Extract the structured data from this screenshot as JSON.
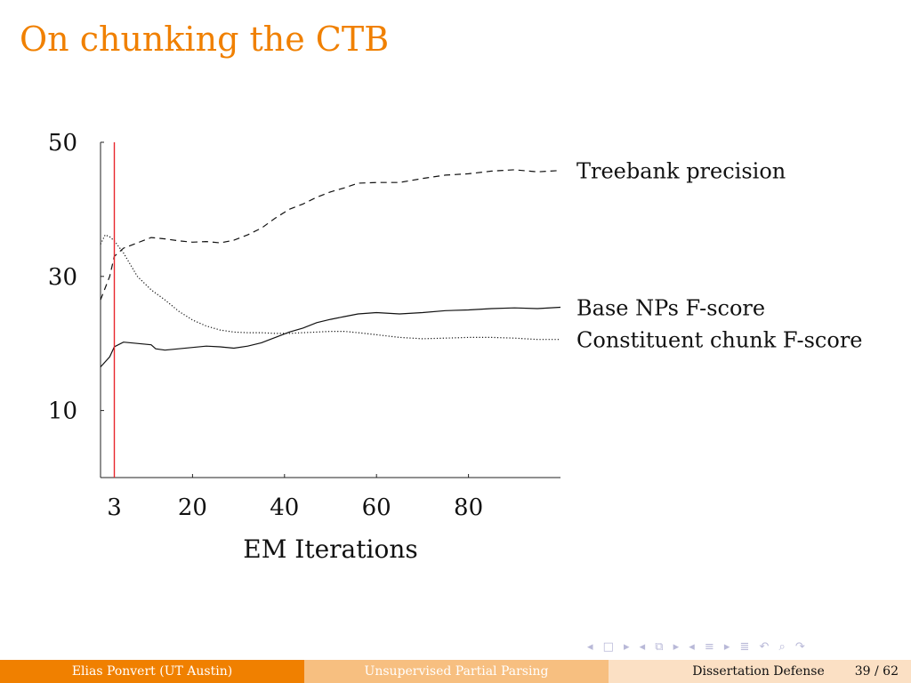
{
  "slide": {
    "title": "On chunking the CTB"
  },
  "footer": {
    "author": "Elias Ponvert  (UT Austin)",
    "talk": "Unsupervised Partial Parsing",
    "event": "Dissertation Defense",
    "page": "39 / 62"
  },
  "nav_icons": [
    "nav-prev-frame-icon",
    "nav-frame-icon",
    "nav-next-frame-icon",
    "nav-prev-subsection-icon",
    "nav-subsection-icon",
    "nav-next-subsection-icon",
    "nav-prev-section-icon",
    "nav-section-icon",
    "nav-next-section-icon",
    "nav-align-icon",
    "nav-back-icon",
    "nav-search-icon",
    "nav-forward-icon"
  ],
  "colors": {
    "accent": "#f08000",
    "marker": "#e8262d"
  },
  "chart_data": {
    "type": "line",
    "title": "",
    "xlabel": "EM Iterations",
    "ylabel": "",
    "xlim": [
      0,
      100
    ],
    "ylim": [
      0,
      50
    ],
    "x_ticks": [
      3,
      20,
      40,
      60,
      80
    ],
    "y_ticks": [
      10,
      30,
      50
    ],
    "marker_x": 3,
    "grid": false,
    "series": [
      {
        "name": "Treebank precision",
        "style": "dashed",
        "x": [
          0,
          2,
          3,
          5,
          8,
          11,
          14,
          17,
          20,
          23,
          26,
          29,
          32,
          35,
          38,
          41,
          44,
          47,
          50,
          53,
          56,
          60,
          65,
          70,
          75,
          80,
          85,
          90,
          95,
          100
        ],
        "y": [
          26.5,
          30,
          33,
          34.2,
          35,
          35.8,
          35.6,
          35.3,
          35.1,
          35.2,
          35,
          35.4,
          36.2,
          37.2,
          38.7,
          40,
          40.8,
          41.8,
          42.6,
          43.2,
          43.9,
          44.0,
          44.0,
          44.6,
          45.1,
          45.3,
          45.7,
          45.9,
          45.6,
          45.8
        ]
      },
      {
        "name": "Base NPs F-score",
        "style": "solid",
        "x": [
          0,
          2,
          3,
          5,
          8,
          11,
          12,
          14,
          17,
          20,
          23,
          26,
          29,
          32,
          35,
          38,
          41,
          44,
          47,
          50,
          53,
          56,
          60,
          65,
          70,
          75,
          80,
          85,
          90,
          95,
          100
        ],
        "y": [
          16.5,
          18,
          19.5,
          20.2,
          20.0,
          19.8,
          19.2,
          19.0,
          19.2,
          19.4,
          19.6,
          19.5,
          19.3,
          19.6,
          20.1,
          20.9,
          21.7,
          22.3,
          23.1,
          23.6,
          24.0,
          24.4,
          24.6,
          24.4,
          24.6,
          24.9,
          25.0,
          25.2,
          25.3,
          25.2,
          25.4
        ]
      },
      {
        "name": "Constituent chunk F-score",
        "style": "dotted",
        "x": [
          0,
          1,
          2,
          3,
          5,
          8,
          11,
          14,
          17,
          20,
          23,
          26,
          29,
          32,
          35,
          38,
          41,
          44,
          47,
          50,
          53,
          56,
          60,
          65,
          70,
          75,
          80,
          85,
          90,
          95,
          100
        ],
        "y": [
          34.8,
          36.2,
          35.9,
          35.3,
          33.5,
          30.0,
          28.0,
          26.5,
          24.8,
          23.5,
          22.6,
          22.0,
          21.7,
          21.6,
          21.6,
          21.5,
          21.5,
          21.6,
          21.7,
          21.8,
          21.8,
          21.6,
          21.3,
          20.9,
          20.7,
          20.8,
          20.9,
          20.9,
          20.8,
          20.6,
          20.6
        ]
      }
    ]
  }
}
